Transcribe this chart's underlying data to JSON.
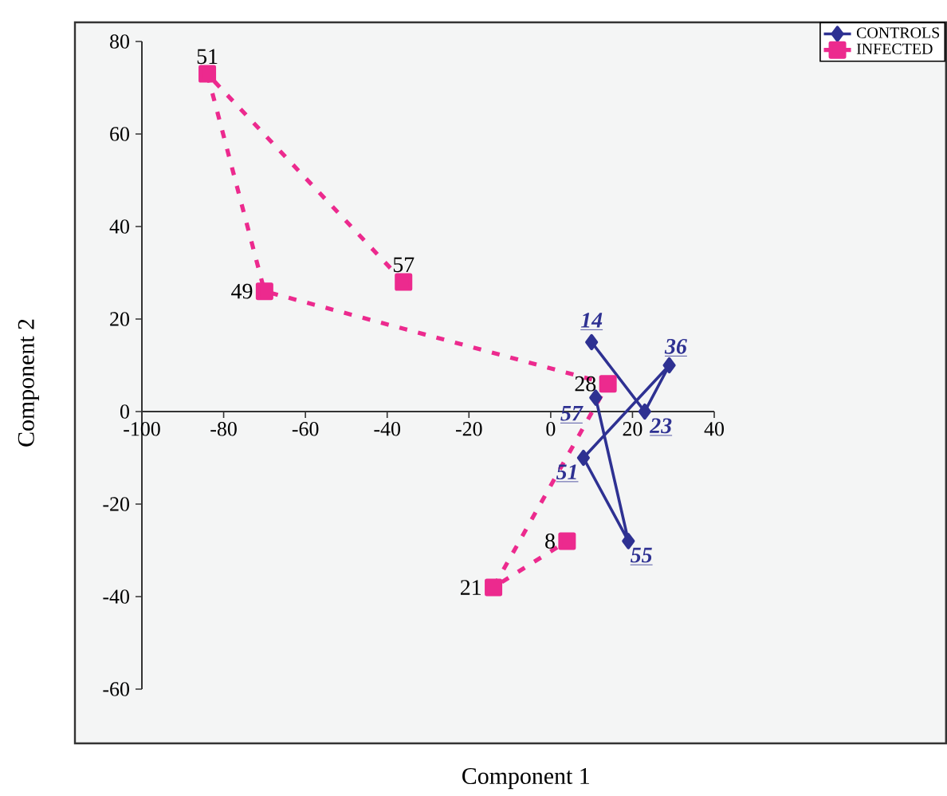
{
  "chart_data": {
    "type": "line",
    "xlabel": "Component 1",
    "ylabel": "Component 2",
    "xlim": [
      -100,
      40
    ],
    "ylim": [
      -60,
      80
    ],
    "xticks": [
      -100,
      -80,
      -60,
      -40,
      -20,
      0,
      20,
      40
    ],
    "yticks": [
      -60,
      -40,
      -20,
      0,
      20,
      40,
      60,
      80
    ],
    "grid": false,
    "legend": "top right",
    "series": [
      {
        "name": "CONTROLS",
        "color": "#2e3192",
        "marker": "diamond",
        "line_style": "solid",
        "x": [
          10,
          23,
          29,
          8,
          19,
          11
        ],
        "values": [
          15,
          0,
          10,
          -10,
          -28,
          3
        ]
      },
      {
        "name": "INFECTED",
        "color": "#ec2a8e",
        "marker": "square",
        "line_style": "dashed",
        "x": [
          -36,
          -84,
          -70,
          14,
          -14,
          4
        ],
        "values": [
          28,
          73,
          26,
          6,
          -38,
          -28
        ]
      }
    ],
    "annotations": [
      {
        "text": "57",
        "x": -36,
        "y": 28
      },
      {
        "text": "51",
        "x": -84,
        "y": 73
      },
      {
        "text": "49",
        "x": -70,
        "y": 26
      },
      {
        "text": "28",
        "x": 14,
        "y": 6
      },
      {
        "text": "21",
        "x": -14,
        "y": -38
      },
      {
        "text": "8",
        "x": 4,
        "y": -28
      },
      {
        "text": "14",
        "x": 10,
        "y": 15
      },
      {
        "text": "23",
        "x": 23,
        "y": 0
      },
      {
        "text": "36",
        "x": 29,
        "y": 10
      },
      {
        "text": "51",
        "x": 8,
        "y": -10
      },
      {
        "text": "55",
        "x": 19,
        "y": -28
      },
      {
        "text": "57",
        "x": 11,
        "y": 3
      }
    ]
  }
}
